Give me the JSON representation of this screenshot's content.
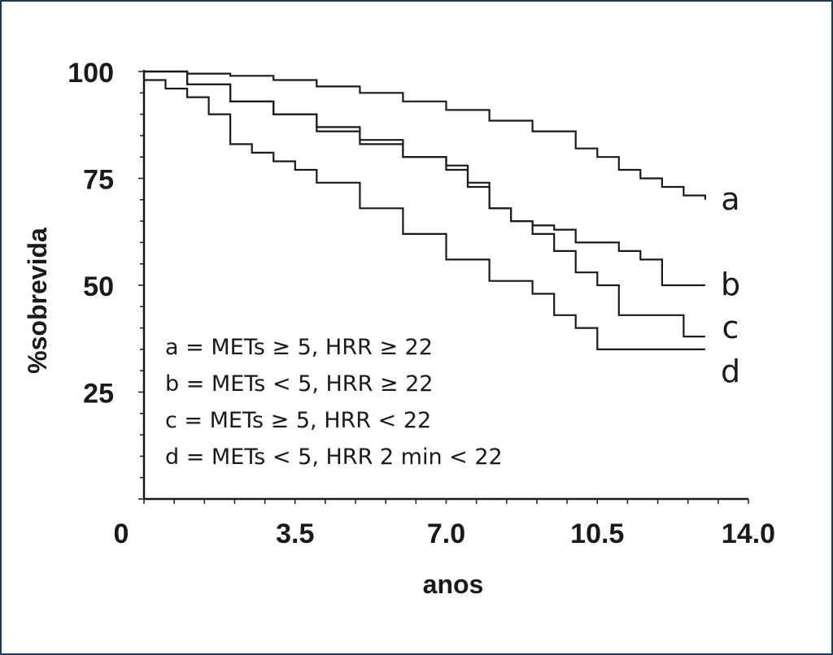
{
  "chart_data": {
    "type": "line",
    "xlabel": "anos",
    "ylabel": "%sobrevida",
    "xlim": [
      0,
      14.0
    ],
    "ylim": [
      0,
      100
    ],
    "x_ticks": [
      "0",
      "3.5",
      "7.0",
      "10.5",
      "14.0"
    ],
    "y_ticks": [
      "25",
      "50",
      "75",
      "100"
    ],
    "grid": false,
    "legend": [
      "a = METs ≥ 5, HRR ≥ 22",
      "b = METs < 5, HRR ≥ 22",
      "c = METs ≥ 5, HRR < 22",
      "d = METs < 5, HRR 2 min < 22"
    ],
    "series": [
      {
        "name": "a",
        "x": [
          0,
          1,
          2,
          3,
          4,
          5,
          6,
          7,
          8,
          9,
          10,
          10.5,
          11,
          11.5,
          12,
          12.5,
          13
        ],
        "y": [
          100,
          99.5,
          99,
          98,
          96.5,
          95,
          93,
          91,
          88.5,
          86,
          82,
          80,
          77,
          75,
          73,
          71,
          70
        ]
      },
      {
        "name": "b",
        "x": [
          0,
          1,
          2,
          3,
          4,
          5,
          6,
          7,
          7.5,
          8,
          8.5,
          9,
          9.5,
          10,
          11,
          11.5,
          12,
          12.5,
          13
        ],
        "y": [
          100,
          97,
          93,
          90,
          86,
          83,
          80,
          78,
          74,
          68,
          65,
          64,
          63,
          60,
          58,
          56,
          50,
          50,
          50
        ]
      },
      {
        "name": "c",
        "x": [
          0,
          1,
          2,
          3,
          4,
          5,
          6,
          7,
          7.5,
          8,
          8.5,
          9,
          9.5,
          10,
          10.5,
          11,
          12,
          12.5,
          13
        ],
        "y": [
          100,
          97,
          93,
          90,
          87,
          84,
          80,
          77,
          73,
          68,
          65,
          62,
          58,
          53,
          50,
          43,
          43,
          38,
          38
        ]
      },
      {
        "name": "d",
        "x": [
          0,
          0.5,
          1,
          1.5,
          2,
          2.5,
          3,
          3.5,
          4,
          5,
          6,
          7,
          8,
          9,
          9.5,
          10,
          10.5,
          11,
          12,
          13
        ],
        "y": [
          98,
          96,
          94,
          90,
          83,
          81,
          79,
          77,
          74,
          68,
          62,
          56,
          51,
          48,
          43,
          40,
          35,
          35,
          35,
          35
        ]
      }
    ]
  }
}
